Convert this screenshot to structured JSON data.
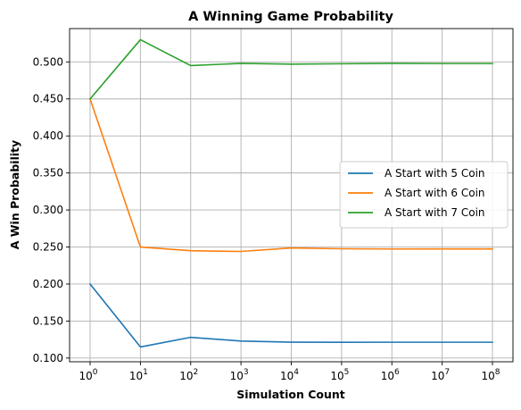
{
  "chart_data": {
    "type": "line",
    "title": "A Winning Game Probability",
    "xlabel": "Simulation Count",
    "ylabel": "A Win Probability",
    "x_scale": "log",
    "x": [
      1,
      10,
      100,
      1000,
      10000,
      100000,
      1000000,
      10000000,
      100000000
    ],
    "x_tick_base": "10",
    "x_tick_exponents": [
      "0",
      "1",
      "2",
      "3",
      "4",
      "5",
      "6",
      "7",
      "8"
    ],
    "y_ticks": [
      "0.100",
      "0.150",
      "0.200",
      "0.250",
      "0.300",
      "0.350",
      "0.400",
      "0.450",
      "0.500"
    ],
    "ylim": [
      0.095,
      0.545
    ],
    "grid": true,
    "legend_position": "center-right",
    "series": [
      {
        "name": "A Start with 5 Coin",
        "color": "#1f77b4",
        "values": [
          0.2,
          0.115,
          0.128,
          0.123,
          0.1215,
          0.1213,
          0.1214,
          0.1214,
          0.1214
        ]
      },
      {
        "name": "A Start with 6 Coin",
        "color": "#ff7f0e",
        "values": [
          0.45,
          0.25,
          0.245,
          0.244,
          0.2488,
          0.2476,
          0.2473,
          0.2474,
          0.2474
        ]
      },
      {
        "name": "A Start with 7 Coin",
        "color": "#2ca02c",
        "values": [
          0.45,
          0.53,
          0.495,
          0.498,
          0.497,
          0.4975,
          0.498,
          0.4978,
          0.4978
        ]
      }
    ]
  }
}
